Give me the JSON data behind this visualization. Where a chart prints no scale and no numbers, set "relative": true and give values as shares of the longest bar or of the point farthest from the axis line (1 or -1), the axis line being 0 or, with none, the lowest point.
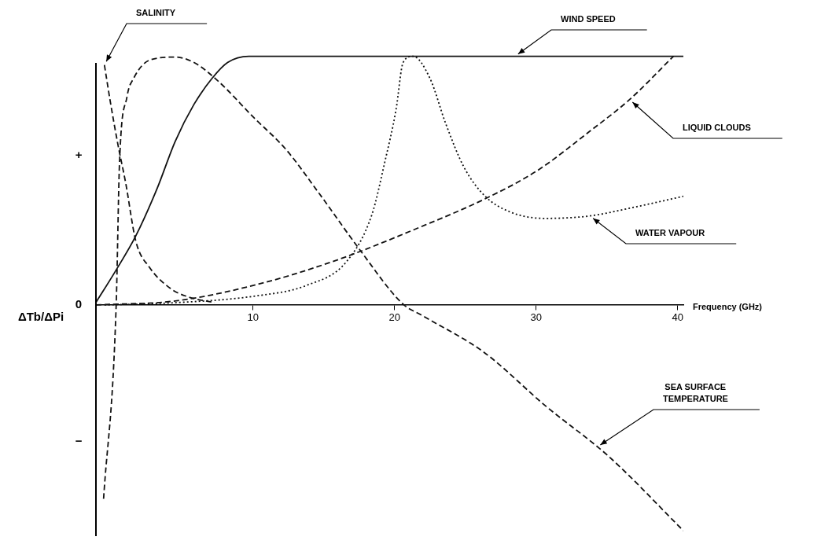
{
  "chart_data": {
    "type": "line",
    "relative": true,
    "xlabel": "Frequency (GHz)",
    "ylabel": "ΔTb/ΔPi",
    "xlim": [
      -1.1,
      40.4
    ],
    "xticks": [
      10,
      20,
      30,
      40
    ],
    "grid": false,
    "legend": false,
    "marker": "none",
    "annotations": [
      "+",
      "0",
      "−"
    ],
    "series": [
      {
        "name": "WIND SPEED",
        "color": "#111111",
        "line_style": "solid",
        "x": [
          -1.1,
          0.28,
          1.72,
          3.22,
          4.5,
          5.83,
          7.1,
          8.2,
          9.7,
          40.4
        ],
        "values": [
          0.01,
          0.136,
          0.278,
          0.468,
          0.658,
          0.807,
          0.911,
          0.975,
          1,
          1
        ]
      },
      {
        "name": "SEA SURFACE TEMPERATURE",
        "color": "#111111",
        "line_style": "dashed",
        "x": [
          -0.56,
          0.33,
          0.56,
          1.1,
          1.56,
          2.67,
          4.5,
          5.83,
          7.5,
          10.06,
          12.3,
          14.7,
          17.5,
          20.6,
          21.9,
          26.3,
          30.7,
          35.1,
          40.4
        ],
        "values": [
          -0.78,
          0,
          0.563,
          0.839,
          0.911,
          0.984,
          0.997,
          0.975,
          0.902,
          0.753,
          0.627,
          0.446,
          0.225,
          0.003,
          -0.041,
          -0.19,
          -0.408,
          -0.608,
          -0.908
        ]
      },
      {
        "name": "SALINITY",
        "color": "#111111",
        "line_style": "dashed",
        "x": [
          -0.5,
          -0.11,
          0.44,
          1.0,
          1.72,
          2.67,
          4.17,
          5.44,
          7.28
        ],
        "values": [
          0.965,
          0.826,
          0.649,
          0.491,
          0.256,
          0.152,
          0.066,
          0.032,
          0.009
        ]
      },
      {
        "name": "WATER VAPOUR",
        "color": "#111111",
        "line_style": "dotted",
        "x": [
          -0.5,
          4.5,
          10.06,
          13.8,
          16.6,
          18.4,
          19.3,
          20.1,
          20.6,
          21.3,
          22.5,
          23.6,
          24.9,
          26.4,
          28.2,
          30.6,
          33.8,
          36.6,
          40.4
        ],
        "values": [
          0,
          0.009,
          0.035,
          0.079,
          0.174,
          0.364,
          0.573,
          0.785,
          0.975,
          1,
          0.911,
          0.731,
          0.554,
          0.437,
          0.373,
          0.348,
          0.358,
          0.389,
          0.437
        ]
      },
      {
        "name": "LIQUID CLOUDS",
        "color": "#111111",
        "line_style": "dashed",
        "x": [
          -1.1,
          4.5,
          10.06,
          15.6,
          22.1,
          26.4,
          30.1,
          33.8,
          36.6,
          39.7
        ],
        "values": [
          0,
          0.016,
          0.079,
          0.174,
          0.32,
          0.427,
          0.541,
          0.699,
          0.826,
          1
        ]
      }
    ]
  }
}
